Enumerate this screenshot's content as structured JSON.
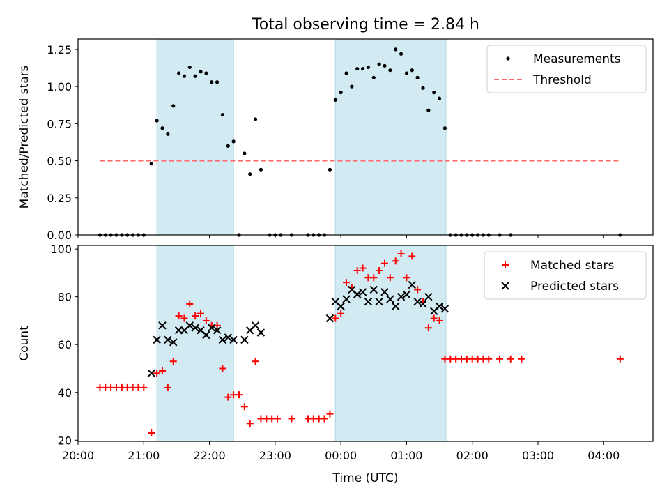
{
  "title": "Total observing time = 2.84 h",
  "colors": {
    "shade": "#add8e6",
    "matched": "#ff0000",
    "predicted": "#000000",
    "threshold": "#ff6666",
    "measurement": "#000000"
  },
  "chart_data": [
    {
      "type": "scatter",
      "panel": "top",
      "xlabel": "",
      "ylabel": "Matched/Predicted stars",
      "xlim": [
        "20:00",
        "04:45"
      ],
      "ylim": [
        0,
        1.32
      ],
      "yticks": [
        "0.00",
        "0.25",
        "0.50",
        "0.75",
        "1.00",
        "1.25"
      ],
      "shaded_intervals": [
        [
          "21:12",
          "22:22"
        ],
        [
          "23:55",
          "01:36"
        ]
      ],
      "legend_position": "top-right",
      "legend": [
        {
          "label": "Measurements",
          "marker": "dot"
        },
        {
          "label": "Threshold",
          "marker": "dashed-line"
        }
      ],
      "threshold": {
        "value": 0.5,
        "x_start": "20:20",
        "x_end": "04:15"
      },
      "series": [
        {
          "name": "Measurements",
          "points": [
            [
              "20:20",
              0
            ],
            [
              "20:25",
              0
            ],
            [
              "20:30",
              0
            ],
            [
              "20:35",
              0
            ],
            [
              "20:40",
              0
            ],
            [
              "20:45",
              0
            ],
            [
              "20:50",
              0
            ],
            [
              "20:55",
              0
            ],
            [
              "21:00",
              0
            ],
            [
              "21:07",
              0.48
            ],
            [
              "21:12",
              0.77
            ],
            [
              "21:17",
              0.72
            ],
            [
              "21:22",
              0.68
            ],
            [
              "21:27",
              0.87
            ],
            [
              "21:32",
              1.09
            ],
            [
              "21:37",
              1.07
            ],
            [
              "21:42",
              1.13
            ],
            [
              "21:47",
              1.07
            ],
            [
              "21:52",
              1.1
            ],
            [
              "21:57",
              1.09
            ],
            [
              "22:02",
              1.03
            ],
            [
              "22:07",
              1.03
            ],
            [
              "22:12",
              0.81
            ],
            [
              "22:17",
              0.6
            ],
            [
              "22:22",
              0.63
            ],
            [
              "22:27",
              0
            ],
            [
              "22:32",
              0.55
            ],
            [
              "22:37",
              0.41
            ],
            [
              "22:42",
              0.78
            ],
            [
              "22:47",
              0.44
            ],
            [
              "22:55",
              0
            ],
            [
              "23:00",
              0
            ],
            [
              "23:05",
              0
            ],
            [
              "23:15",
              0
            ],
            [
              "23:30",
              0
            ],
            [
              "23:35",
              0
            ],
            [
              "23:40",
              0
            ],
            [
              "23:45",
              0
            ],
            [
              "23:50",
              0.44
            ],
            [
              "23:55",
              0.91
            ],
            [
              "00:00",
              0.96
            ],
            [
              "00:05",
              1.09
            ],
            [
              "00:10",
              1.0
            ],
            [
              "00:15",
              1.12
            ],
            [
              "00:20",
              1.12
            ],
            [
              "00:25",
              1.13
            ],
            [
              "00:30",
              1.06
            ],
            [
              "00:35",
              1.15
            ],
            [
              "00:40",
              1.14
            ],
            [
              "00:45",
              1.11
            ],
            [
              "00:50",
              1.25
            ],
            [
              "00:55",
              1.22
            ],
            [
              "01:00",
              1.09
            ],
            [
              "01:05",
              1.11
            ],
            [
              "01:10",
              1.06
            ],
            [
              "01:15",
              0.99
            ],
            [
              "01:20",
              0.84
            ],
            [
              "01:25",
              0.96
            ],
            [
              "01:30",
              0.92
            ],
            [
              "01:35",
              0.72
            ],
            [
              "01:40",
              0
            ],
            [
              "01:45",
              0
            ],
            [
              "01:50",
              0
            ],
            [
              "01:55",
              0
            ],
            [
              "02:00",
              0
            ],
            [
              "02:05",
              0
            ],
            [
              "02:10",
              0
            ],
            [
              "02:15",
              0
            ],
            [
              "02:25",
              0
            ],
            [
              "02:35",
              0
            ],
            [
              "04:15",
              0
            ]
          ]
        }
      ]
    },
    {
      "type": "scatter",
      "panel": "bottom",
      "xlabel": "Time (UTC)",
      "ylabel": "Count",
      "xlim": [
        "20:00",
        "04:45"
      ],
      "ylim": [
        19.5,
        101.5
      ],
      "yticks": [
        "20",
        "40",
        "60",
        "80",
        "100"
      ],
      "xticks": [
        "20:00",
        "21:00",
        "22:00",
        "23:00",
        "00:00",
        "01:00",
        "02:00",
        "03:00",
        "04:00"
      ],
      "shaded_intervals": [
        [
          "21:12",
          "22:22"
        ],
        [
          "23:55",
          "01:36"
        ]
      ],
      "legend_position": "top-right",
      "legend": [
        {
          "label": "Matched stars",
          "marker": "plus"
        },
        {
          "label": "Predicted stars",
          "marker": "x"
        }
      ],
      "series": [
        {
          "name": "Matched stars",
          "points": [
            [
              "20:20",
              42
            ],
            [
              "20:25",
              42
            ],
            [
              "20:30",
              42
            ],
            [
              "20:35",
              42
            ],
            [
              "20:40",
              42
            ],
            [
              "20:45",
              42
            ],
            [
              "20:50",
              42
            ],
            [
              "20:55",
              42
            ],
            [
              "21:00",
              42
            ],
            [
              "21:07",
              23
            ],
            [
              "21:12",
              48
            ],
            [
              "21:17",
              49
            ],
            [
              "21:22",
              42
            ],
            [
              "21:27",
              53
            ],
            [
              "21:32",
              72
            ],
            [
              "21:37",
              71
            ],
            [
              "21:42",
              77
            ],
            [
              "21:47",
              72
            ],
            [
              "21:52",
              73
            ],
            [
              "21:57",
              70
            ],
            [
              "22:02",
              68
            ],
            [
              "22:07",
              68
            ],
            [
              "22:12",
              50
            ],
            [
              "22:17",
              38
            ],
            [
              "22:22",
              39
            ],
            [
              "22:27",
              39
            ],
            [
              "22:32",
              34
            ],
            [
              "22:37",
              27
            ],
            [
              "22:42",
              53
            ],
            [
              "22:47",
              29
            ],
            [
              "22:52",
              29
            ],
            [
              "22:57",
              29
            ],
            [
              "23:02",
              29
            ],
            [
              "23:15",
              29
            ],
            [
              "23:30",
              29
            ],
            [
              "23:35",
              29
            ],
            [
              "23:40",
              29
            ],
            [
              "23:45",
              29
            ],
            [
              "23:50",
              31
            ],
            [
              "23:55",
              71
            ],
            [
              "00:00",
              73
            ],
            [
              "00:05",
              86
            ],
            [
              "00:10",
              84
            ],
            [
              "00:15",
              91
            ],
            [
              "00:20",
              92
            ],
            [
              "00:25",
              88
            ],
            [
              "00:30",
              88
            ],
            [
              "00:35",
              91
            ],
            [
              "00:40",
              94
            ],
            [
              "00:45",
              88
            ],
            [
              "00:50",
              95
            ],
            [
              "00:55",
              98
            ],
            [
              "01:00",
              88
            ],
            [
              "01:05",
              97
            ],
            [
              "01:10",
              83
            ],
            [
              "01:15",
              78
            ],
            [
              "01:20",
              67
            ],
            [
              "01:25",
              71
            ],
            [
              "01:30",
              70
            ],
            [
              "01:35",
              54
            ],
            [
              "01:40",
              54
            ],
            [
              "01:45",
              54
            ],
            [
              "01:50",
              54
            ],
            [
              "01:55",
              54
            ],
            [
              "02:00",
              54
            ],
            [
              "02:05",
              54
            ],
            [
              "02:10",
              54
            ],
            [
              "02:15",
              54
            ],
            [
              "02:25",
              54
            ],
            [
              "02:35",
              54
            ],
            [
              "02:45",
              54
            ],
            [
              "04:15",
              54
            ]
          ]
        },
        {
          "name": "Predicted stars",
          "points": [
            [
              "21:07",
              48
            ],
            [
              "21:12",
              62
            ],
            [
              "21:17",
              68
            ],
            [
              "21:22",
              62
            ],
            [
              "21:27",
              61
            ],
            [
              "21:32",
              66
            ],
            [
              "21:37",
              66
            ],
            [
              "21:42",
              68
            ],
            [
              "21:47",
              67
            ],
            [
              "21:52",
              66
            ],
            [
              "21:57",
              64
            ],
            [
              "22:02",
              67
            ],
            [
              "22:07",
              66
            ],
            [
              "22:12",
              62
            ],
            [
              "22:17",
              63
            ],
            [
              "22:22",
              62
            ],
            [
              "22:32",
              62
            ],
            [
              "22:37",
              66
            ],
            [
              "22:42",
              68
            ],
            [
              "22:47",
              65
            ],
            [
              "23:50",
              71
            ],
            [
              "23:55",
              78
            ],
            [
              "00:00",
              76
            ],
            [
              "00:05",
              79
            ],
            [
              "00:10",
              83
            ],
            [
              "00:15",
              81
            ],
            [
              "00:20",
              82
            ],
            [
              "00:25",
              78
            ],
            [
              "00:30",
              83
            ],
            [
              "00:35",
              78
            ],
            [
              "00:40",
              82
            ],
            [
              "00:45",
              79
            ],
            [
              "00:50",
              76
            ],
            [
              "00:55",
              80
            ],
            [
              "01:00",
              81
            ],
            [
              "01:05",
              85
            ],
            [
              "01:10",
              78
            ],
            [
              "01:15",
              77
            ],
            [
              "01:20",
              80
            ],
            [
              "01:25",
              74
            ],
            [
              "01:30",
              76
            ],
            [
              "01:35",
              75
            ]
          ]
        }
      ]
    }
  ]
}
